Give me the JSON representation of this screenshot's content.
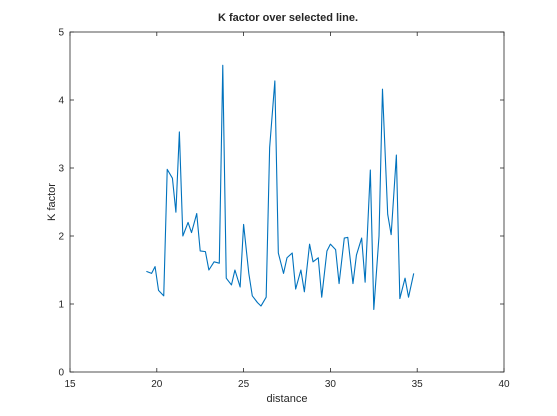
{
  "chart_data": {
    "type": "line",
    "title": "K factor over selected line.",
    "xlabel": "distance",
    "ylabel": "K factor",
    "xlim": [
      15,
      40
    ],
    "ylim": [
      0,
      5
    ],
    "xticks": [
      15,
      20,
      25,
      30,
      35,
      40
    ],
    "yticks": [
      0,
      1,
      2,
      3,
      4,
      5
    ],
    "grid": false,
    "legend": "none",
    "line_color": "#0072BD",
    "series": [
      {
        "x": [
          19.4,
          19.7,
          19.9,
          20.1,
          20.4,
          20.6,
          20.9,
          21.1,
          21.3,
          21.5,
          21.8,
          22.0,
          22.3,
          22.5,
          22.8,
          23.0,
          23.3,
          23.6,
          23.8,
          24.0,
          24.3,
          24.5,
          24.8,
          25.0,
          25.3,
          25.5,
          25.8,
          26.0,
          26.3,
          26.5,
          26.8,
          27.0,
          27.3,
          27.5,
          27.8,
          28.0,
          28.3,
          28.5,
          28.8,
          29.0,
          29.3,
          29.5,
          29.8,
          30.0,
          30.3,
          30.5,
          30.8,
          31.0,
          31.3,
          31.5,
          31.8,
          32.0,
          32.3,
          32.5,
          32.8,
          33.0,
          33.3,
          33.5,
          33.8,
          34.0,
          34.3,
          34.5,
          34.8
        ],
        "y": [
          1.48,
          1.45,
          1.55,
          1.2,
          1.12,
          2.98,
          2.85,
          2.35,
          3.53,
          2.0,
          2.2,
          2.05,
          2.33,
          1.78,
          1.77,
          1.5,
          1.62,
          1.6,
          4.51,
          1.38,
          1.28,
          1.5,
          1.25,
          2.17,
          1.45,
          1.12,
          1.02,
          0.97,
          1.1,
          3.3,
          4.28,
          1.75,
          1.45,
          1.68,
          1.75,
          1.22,
          1.5,
          1.18,
          1.88,
          1.62,
          1.68,
          1.1,
          1.78,
          1.88,
          1.8,
          1.3,
          1.97,
          1.98,
          1.3,
          1.72,
          1.97,
          1.32,
          2.97,
          0.92,
          2.0,
          4.16,
          2.32,
          2.02,
          3.19,
          1.08,
          1.38,
          1.1,
          1.45
        ]
      }
    ]
  }
}
